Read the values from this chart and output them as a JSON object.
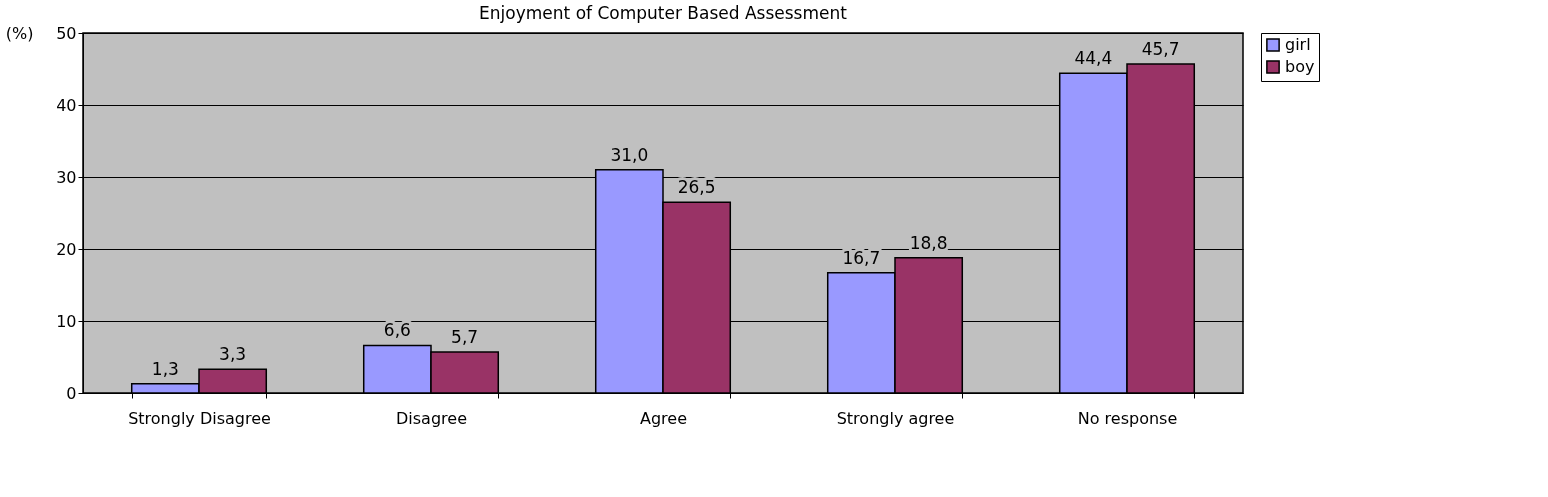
{
  "chart_data": {
    "type": "bar",
    "title": "Enjoyment of Computer Based Assessment",
    "ylabel": "(%)",
    "categories": [
      "Strongly Disagree",
      "Disagree",
      "Agree",
      "Strongly agree",
      "No response"
    ],
    "series": [
      {
        "name": "girl",
        "color": "#9999ff",
        "values": [
          1.3,
          6.6,
          31.0,
          16.7,
          44.4
        ],
        "value_labels": [
          "1,3",
          "6,6",
          "31,0",
          "16,7",
          "44,4"
        ]
      },
      {
        "name": "boy",
        "color": "#993366",
        "values": [
          3.3,
          5.7,
          26.5,
          18.8,
          45.7
        ],
        "value_labels": [
          "3,3",
          "5,7",
          "26,5",
          "18,8",
          "45,7"
        ]
      }
    ],
    "ylim": [
      0,
      50
    ],
    "yticks": [
      0,
      10,
      20,
      30,
      40,
      50
    ],
    "grid": "y",
    "legend": "right"
  }
}
